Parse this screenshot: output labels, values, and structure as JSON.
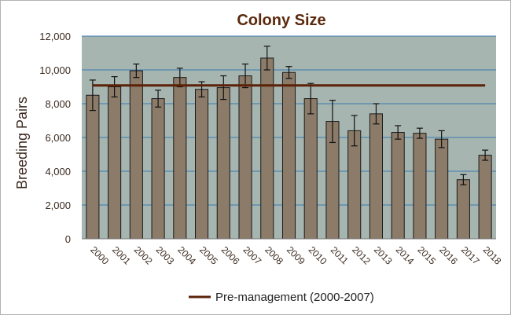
{
  "chart_data": {
    "type": "bar",
    "title": "Colony Size",
    "xlabel": "",
    "ylabel": "Breeding Pairs",
    "ylim": [
      0,
      12000
    ],
    "yticks": [
      "0",
      "2,000",
      "4,000",
      "6,000",
      "8,000",
      "10,000",
      "12,000"
    ],
    "grid": true,
    "legend_position": "bottom",
    "categories": [
      "2000",
      "2001",
      "2002",
      "2003",
      "2004",
      "2005",
      "2006",
      "2007",
      "2008",
      "2009",
      "2010",
      "2011",
      "2012",
      "2013",
      "2014",
      "2015",
      "2016",
      "2017",
      "2018"
    ],
    "values": [
      8500,
      9000,
      9950,
      8300,
      9550,
      8850,
      8950,
      9650,
      10700,
      9850,
      8300,
      6950,
      6400,
      7400,
      6300,
      6250,
      5900,
      3500,
      4950
    ],
    "errors": [
      900,
      600,
      400,
      500,
      550,
      450,
      700,
      700,
      700,
      350,
      900,
      1250,
      900,
      600,
      400,
      300,
      500,
      300,
      300
    ],
    "reference_line": {
      "label": "Pre-management (2000-2007)",
      "value": 9080
    },
    "colors": {
      "title": "#5b2a0e",
      "plot_background": "#a7b5b0",
      "bar_fill": "#8b7b68",
      "bar_stroke": "#1a1a1a",
      "grid": "#3a7bb0",
      "reference_line": "#5b2208",
      "axis_text": "#3b2a20"
    }
  }
}
